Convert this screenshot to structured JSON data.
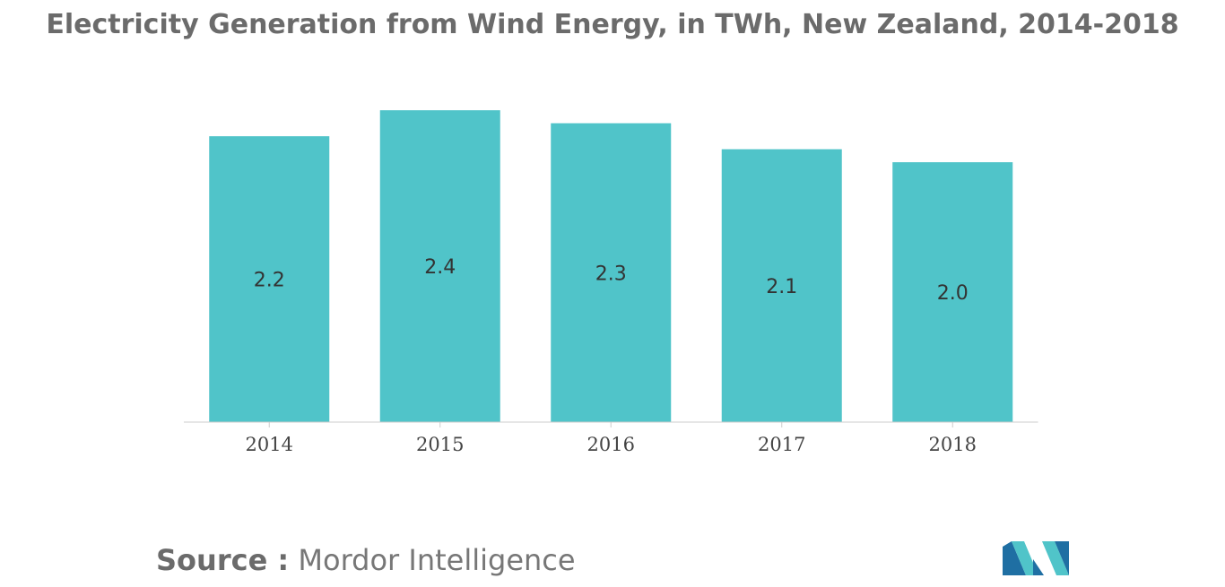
{
  "chart_data": {
    "type": "bar",
    "title": "Electricity Generation from Wind Energy, in TWh, New Zealand, 2014-2018",
    "categories": [
      "2014",
      "2015",
      "2016",
      "2017",
      "2018"
    ],
    "values": [
      2.2,
      2.4,
      2.3,
      2.1,
      2.0
    ],
    "value_labels": [
      "2.2",
      "2.4",
      "2.3",
      "2.1",
      "2.0"
    ],
    "xlabel": "",
    "ylabel": "",
    "ylim": [
      0,
      2.4
    ],
    "grid": false,
    "legend": "none",
    "bar_color": "#50c4c9"
  },
  "footer": {
    "source_label": "Source :",
    "source_value": "Mordor Intelligence"
  },
  "logo": {
    "icon": "mordor-intelligence-logo-icon",
    "colors": [
      "#1f6fa3",
      "#50c4c9"
    ]
  }
}
